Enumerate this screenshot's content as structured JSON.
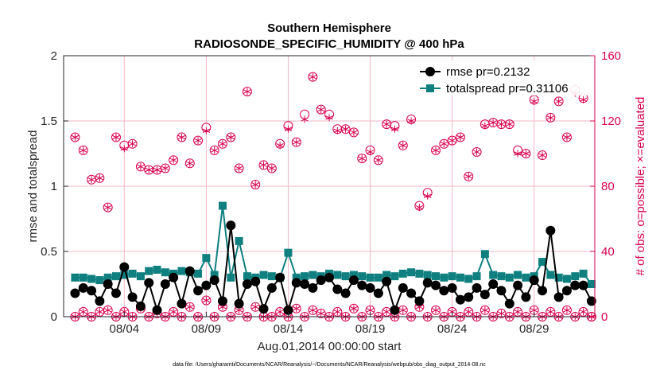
{
  "chart_data": {
    "type": "line",
    "title": "Southern Hemisphere",
    "subtitle": "RADIOSONDE_SPECIFIC_HUMIDITY @ 400 hPa",
    "xlabel": "Aug.01,2014 00:00:00 start",
    "ylabel": "rmse and totalspread",
    "ylabel_right": "# of obs: o=possible; ×=evaluated",
    "footnote": "data file: /Users/gharamti/Documents/NCAR/Reanalysis/~/Documents/NCAR/Reanalysis/webpub/obs_diag_output_2014-08.nc",
    "xlim": [
      0.3,
      32.7
    ],
    "ylim": [
      0,
      2
    ],
    "ylim_right": [
      0,
      160
    ],
    "x_ticks": [
      4,
      9,
      14,
      19,
      24,
      29
    ],
    "x_tick_labels": [
      "08/04",
      "08/09",
      "08/14",
      "08/19",
      "08/24",
      "08/29"
    ],
    "y_ticks": [
      0,
      0.5,
      1,
      1.5,
      2
    ],
    "y_tick_labels": [
      "0",
      "0.5",
      "1",
      "1.5",
      "2"
    ],
    "y_right_ticks": [
      0,
      40,
      80,
      120,
      160
    ],
    "y_right_tick_labels": [
      "0",
      "40",
      "80",
      "120",
      "160"
    ],
    "grid": true,
    "legend_position": "top-right",
    "colors": {
      "rmse": "#000000",
      "totalspread": "#0f7f7f",
      "obs": "#d6004d",
      "grid": "#f2b8c6"
    },
    "series": [
      {
        "name": "rmse pr=0.2132",
        "x": [
          1,
          1.5,
          2,
          2.5,
          3,
          3.5,
          4,
          4.5,
          5,
          5.5,
          6,
          6.5,
          7,
          7.5,
          8,
          8.5,
          9,
          9.5,
          10,
          10.5,
          11,
          11.5,
          12,
          12.5,
          13,
          13.5,
          14,
          14.5,
          15,
          15.5,
          16,
          16.5,
          17,
          17.5,
          18,
          18.5,
          19,
          19.5,
          20,
          20.5,
          21,
          21.5,
          22,
          22.5,
          23,
          23.5,
          24,
          24.5,
          25,
          25.5,
          26,
          26.5,
          27,
          27.5,
          28,
          28.5,
          29,
          29.5,
          30,
          30.5,
          31,
          31.5,
          32,
          32.5
        ],
        "values": [
          0.18,
          0.22,
          0.2,
          0.12,
          0.25,
          0.18,
          0.38,
          0.15,
          0.08,
          0.26,
          0.05,
          0.25,
          0.3,
          0.1,
          0.35,
          0.2,
          0.24,
          0.28,
          0.12,
          0.7,
          0.1,
          0.25,
          0.27,
          0.06,
          0.22,
          0.3,
          0.05,
          0.26,
          0.25,
          0.22,
          0.28,
          0.3,
          0.21,
          0.18,
          0.28,
          0.24,
          0.22,
          0.18,
          0.27,
          0.05,
          0.22,
          0.18,
          0.12,
          0.26,
          0.24,
          0.2,
          0.22,
          0.13,
          0.15,
          0.22,
          0.17,
          0.25,
          0.2,
          0.1,
          0.24,
          0.15,
          0.28,
          0.2,
          0.66,
          0.15,
          0.2,
          0.24,
          0.24,
          0.12
        ]
      },
      {
        "name": "totalspread pr=0.31106",
        "x": [
          1,
          1.5,
          2,
          2.5,
          3,
          3.5,
          4,
          4.5,
          5,
          5.5,
          6,
          6.5,
          7,
          7.5,
          8,
          8.5,
          9,
          9.5,
          10,
          10.5,
          11,
          11.5,
          12,
          12.5,
          13,
          13.5,
          14,
          14.5,
          15,
          15.5,
          16,
          16.5,
          17,
          17.5,
          18,
          18.5,
          19,
          19.5,
          20,
          20.5,
          21,
          21.5,
          22,
          22.5,
          23,
          23.5,
          24,
          24.5,
          25,
          25.5,
          26,
          26.5,
          27,
          27.5,
          28,
          28.5,
          29,
          29.5,
          30,
          30.5,
          31,
          31.5,
          32,
          32.5
        ],
        "values": [
          0.3,
          0.3,
          0.29,
          0.28,
          0.3,
          0.31,
          0.32,
          0.33,
          0.31,
          0.35,
          0.36,
          0.34,
          0.33,
          0.35,
          0.34,
          0.33,
          0.45,
          0.32,
          0.85,
          0.3,
          0.58,
          0.31,
          0.3,
          0.32,
          0.31,
          0.3,
          0.49,
          0.3,
          0.31,
          0.32,
          0.31,
          0.33,
          0.32,
          0.31,
          0.32,
          0.31,
          0.3,
          0.3,
          0.32,
          0.31,
          0.33,
          0.34,
          0.33,
          0.32,
          0.31,
          0.3,
          0.31,
          0.3,
          0.29,
          0.31,
          0.48,
          0.32,
          0.31,
          0.3,
          0.32,
          0.3,
          0.31,
          0.42,
          0.32,
          0.3,
          0.29,
          0.31,
          0.33,
          0.25
        ]
      },
      {
        "name": "# obs possible",
        "axis": "right",
        "x": [
          1,
          1.5,
          2,
          2.5,
          3,
          3.5,
          4,
          4.5,
          5,
          5.5,
          6,
          6.5,
          7,
          7.5,
          8,
          8.5,
          9,
          9.5,
          10,
          10.5,
          11,
          11.5,
          12,
          12.5,
          13,
          13.5,
          14,
          14.5,
          15,
          15.5,
          16,
          16.5,
          17,
          17.5,
          18,
          18.5,
          19,
          19.5,
          20,
          20.5,
          21,
          21.5,
          22,
          22.5,
          23,
          23.5,
          24,
          24.5,
          25,
          25.5,
          26,
          26.5,
          27,
          27.5,
          28,
          28.5,
          29,
          29.5,
          30,
          30.5,
          31,
          31.5,
          32,
          32.5,
          1,
          1.5,
          2,
          2.5,
          3,
          3.5,
          4,
          4.5,
          5,
          5.5,
          6,
          6.5,
          7,
          7.5,
          8,
          8.5,
          9,
          9.5,
          10,
          10.5,
          11,
          11.5,
          12,
          12.5,
          13,
          13.5,
          14,
          14.5,
          15,
          15.5,
          16,
          16.5,
          17,
          17.5,
          18,
          18.5,
          19,
          19.5,
          20,
          20.5,
          21,
          21.5,
          22,
          22.5,
          23,
          23.5,
          24,
          24.5,
          25,
          25.5,
          26,
          26.5,
          27,
          27.5,
          28,
          28.5,
          29,
          29.5,
          30,
          30.5,
          31,
          31.5,
          32,
          32.5
        ],
        "values": [
          110,
          102,
          84,
          85,
          67,
          110,
          105,
          106,
          92,
          90,
          90,
          91,
          96,
          110,
          94,
          108,
          116,
          102,
          106,
          110,
          91,
          138,
          81,
          93,
          91,
          106,
          117,
          107,
          124,
          147,
          127,
          124,
          115,
          115,
          113,
          97,
          102,
          96,
          118,
          117,
          105,
          121,
          68,
          76,
          102,
          106,
          108,
          110,
          86,
          101,
          118,
          119,
          118,
          118,
          102,
          100,
          133,
          99,
          122,
          132,
          110,
          139,
          134,
          0,
          0,
          3,
          0,
          3,
          4,
          0,
          3,
          0,
          5,
          0,
          2,
          0,
          3,
          0,
          6,
          0,
          10,
          0,
          6,
          0,
          4,
          0,
          6,
          0,
          0,
          3,
          0,
          5,
          0,
          4,
          2,
          0,
          3,
          0,
          5,
          0,
          4,
          0,
          3,
          0,
          4,
          0,
          6,
          0,
          4,
          0,
          3,
          0,
          3,
          0,
          4,
          0,
          2,
          0,
          3,
          0,
          4,
          0,
          3,
          0,
          4,
          0,
          3,
          0
        ]
      },
      {
        "name": "# obs evaluated",
        "axis": "right",
        "x": [
          1,
          1.5,
          2,
          2.5,
          3,
          3.5,
          4,
          4.5,
          5,
          5.5,
          6,
          6.5,
          7,
          7.5,
          8,
          8.5,
          9,
          9.5,
          10,
          10.5,
          11,
          11.5,
          12,
          12.5,
          13,
          13.5,
          14,
          14.5,
          15,
          15.5,
          16,
          16.5,
          17,
          17.5,
          18,
          18.5,
          19,
          19.5,
          20,
          20.5,
          21,
          21.5,
          22,
          22.5,
          23,
          23.5,
          24,
          24.5,
          25,
          25.5,
          26,
          26.5,
          27,
          27.5,
          28,
          28.5,
          29,
          29.5,
          30,
          30.5,
          31,
          31.5,
          32,
          32.5,
          1,
          1.5,
          2,
          2.5,
          3,
          3.5,
          4,
          4.5,
          5,
          5.5,
          6,
          6.5,
          7,
          7.5,
          8,
          8.5,
          9,
          9.5,
          10,
          10.5,
          11,
          11.5,
          12,
          12.5,
          13,
          13.5,
          14,
          14.5,
          15,
          15.5,
          16,
          16.5,
          17,
          17.5,
          18,
          18.5,
          19,
          19.5,
          20,
          20.5,
          21,
          21.5,
          22,
          22.5,
          23,
          23.5,
          24,
          24.5,
          25,
          25.5,
          26,
          26.5,
          27,
          27.5,
          28,
          28.5,
          29,
          29.5,
          30,
          30.5,
          31,
          31.5,
          32,
          32.5
        ],
        "values": [
          110,
          102,
          84,
          85,
          67,
          110,
          103,
          106,
          92,
          90,
          90,
          91,
          96,
          110,
          94,
          108,
          114,
          102,
          106,
          110,
          91,
          138,
          81,
          93,
          91,
          105,
          115,
          107,
          121,
          147,
          127,
          122,
          114,
          115,
          113,
          97,
          101,
          96,
          118,
          115,
          105,
          120,
          67,
          74,
          102,
          106,
          108,
          110,
          86,
          101,
          117,
          119,
          118,
          118,
          100,
          100,
          132,
          99,
          122,
          132,
          110,
          137,
          133,
          0,
          0,
          3,
          0,
          3,
          4,
          0,
          3,
          0,
          5,
          0,
          2,
          0,
          3,
          0,
          6,
          0,
          10,
          0,
          6,
          0,
          4,
          0,
          6,
          0,
          0,
          3,
          0,
          5,
          0,
          4,
          2,
          0,
          3,
          0,
          5,
          0,
          4,
          0,
          3,
          0,
          4,
          0,
          6,
          0,
          4,
          0,
          3,
          0,
          3,
          0,
          4,
          0,
          2,
          0,
          3,
          0,
          4,
          0,
          3,
          0,
          4,
          0,
          3,
          0
        ]
      }
    ]
  }
}
